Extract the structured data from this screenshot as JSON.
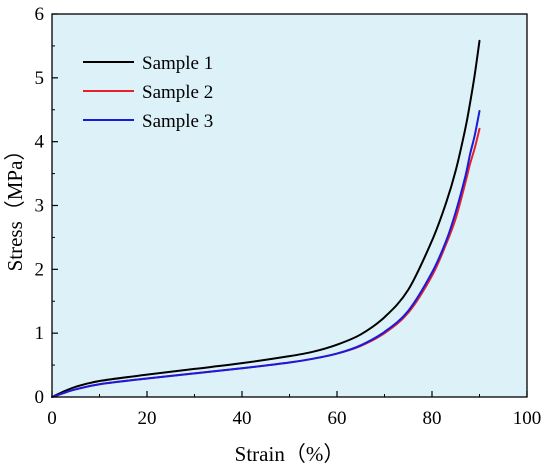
{
  "chart_data": {
    "type": "line",
    "xlabel": "Strain（%）",
    "ylabel": "Stress（MPa）",
    "xlim": [
      0,
      100
    ],
    "ylim": [
      0,
      6
    ],
    "xticks": [
      "0",
      "20",
      "40",
      "60",
      "80",
      "100"
    ],
    "yticks": [
      "0",
      "1",
      "2",
      "3",
      "4",
      "5",
      "6"
    ],
    "background_color": "#dcf1f8",
    "grid": false,
    "legend_position": "top-left",
    "series": [
      {
        "name": "Sample 1",
        "color": "#000000",
        "x": [
          0,
          2,
          5,
          10,
          20,
          30,
          40,
          50,
          55,
          60,
          65,
          70,
          75,
          80,
          83,
          85,
          87,
          88,
          89,
          90
        ],
        "y": [
          0,
          0.07,
          0.16,
          0.25,
          0.35,
          0.44,
          0.53,
          0.64,
          0.71,
          0.82,
          0.98,
          1.25,
          1.68,
          2.45,
          3.05,
          3.55,
          4.2,
          4.6,
          5.05,
          5.58
        ]
      },
      {
        "name": "Sample 2",
        "color": "#e8202a",
        "x": [
          0,
          2,
          5,
          10,
          20,
          30,
          40,
          50,
          55,
          60,
          65,
          70,
          75,
          80,
          83,
          85,
          87,
          88,
          89,
          90
        ],
        "y": [
          0,
          0.05,
          0.12,
          0.2,
          0.29,
          0.37,
          0.45,
          0.54,
          0.6,
          0.68,
          0.8,
          1.0,
          1.32,
          1.9,
          2.4,
          2.8,
          3.35,
          3.65,
          3.9,
          4.2
        ]
      },
      {
        "name": "Sample 3",
        "color": "#1a1adc",
        "x": [
          0,
          2,
          5,
          10,
          20,
          30,
          40,
          50,
          55,
          60,
          65,
          70,
          75,
          80,
          83,
          85,
          87,
          88,
          89,
          90
        ],
        "y": [
          0,
          0.05,
          0.12,
          0.2,
          0.29,
          0.37,
          0.45,
          0.54,
          0.6,
          0.68,
          0.81,
          1.02,
          1.35,
          1.95,
          2.45,
          2.9,
          3.45,
          3.8,
          4.1,
          4.48
        ]
      }
    ]
  }
}
